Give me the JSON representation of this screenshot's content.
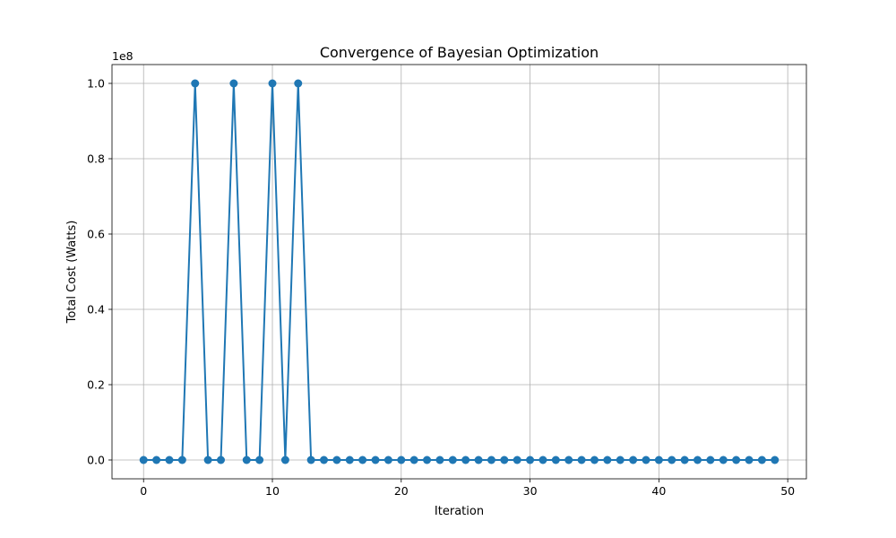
{
  "chart_data": {
    "type": "line",
    "title": "Convergence of Bayesian Optimization",
    "xlabel": "Iteration",
    "ylabel": "Total Cost (Watts)",
    "y_offset_label": "1e8",
    "xlim": [
      -2.45,
      51.45
    ],
    "ylim": [
      -0.05,
      1.05
    ],
    "x_ticks": [
      0,
      10,
      20,
      30,
      40,
      50
    ],
    "x_tick_labels": [
      "0",
      "10",
      "20",
      "30",
      "40",
      "50"
    ],
    "y_ticks": [
      0.0,
      0.2,
      0.4,
      0.6,
      0.8,
      1.0
    ],
    "y_tick_labels": [
      "0.0",
      "0.2",
      "0.4",
      "0.6",
      "0.8",
      "1.0"
    ],
    "grid": true,
    "line_color": "#1f77b4",
    "marker": "circle",
    "series": [
      {
        "x": [
          0,
          1,
          2,
          3,
          4,
          5,
          6,
          7,
          8,
          9,
          10,
          11,
          12,
          13,
          14,
          15,
          16,
          17,
          18,
          19,
          20,
          21,
          22,
          23,
          24,
          25,
          26,
          27,
          28,
          29,
          30,
          31,
          32,
          33,
          34,
          35,
          36,
          37,
          38,
          39,
          40,
          41,
          42,
          43,
          44,
          45,
          46,
          47,
          48,
          49
        ],
        "values": [
          0,
          0,
          0,
          0,
          1.0,
          0,
          0,
          1.0,
          0,
          0,
          1.0,
          0,
          1.0,
          0,
          0,
          0,
          0,
          0,
          0,
          0,
          0,
          0,
          0,
          0,
          0,
          0,
          0,
          0,
          0,
          0,
          0,
          0,
          0,
          0,
          0,
          0,
          0,
          0,
          0,
          0,
          0,
          0,
          0,
          0,
          0,
          0,
          0,
          0,
          0,
          0
        ]
      }
    ]
  }
}
